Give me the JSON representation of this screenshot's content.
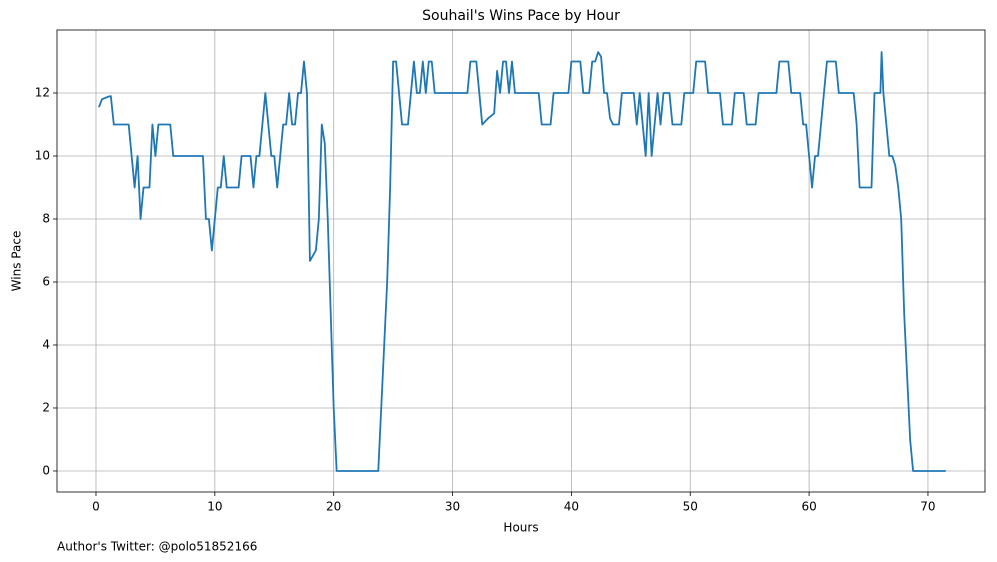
{
  "chart_data": {
    "type": "line",
    "title": "Souhail's Wins Pace by Hour",
    "x_label": "Hours",
    "y_label": "Wins Pace",
    "footnote": "Author's Twitter: @polo51852166",
    "color": "#1f77b4",
    "grid": true,
    "xlim": [
      -3.28,
      74.8
    ],
    "ylim": [
      -0.667,
      14.0
    ],
    "xticks": [
      0,
      10,
      20,
      30,
      40,
      50,
      60,
      70
    ],
    "yticks": [
      0,
      2,
      4,
      6,
      8,
      10,
      12
    ],
    "x": [
      0.25,
      0.5,
      1,
      1.25,
      1.5,
      2,
      2.5,
      2.75,
      3,
      3.25,
      3.5,
      3.75,
      4,
      4.25,
      4.5,
      4.75,
      5,
      5.25,
      5.5,
      6,
      6.25,
      6.5,
      7,
      8,
      9,
      9.25,
      9.5,
      9.75,
      10,
      10.25,
      10.5,
      10.75,
      11,
      11.5,
      12,
      12.25,
      12.5,
      13,
      13.25,
      13.5,
      13.75,
      14,
      14.25,
      14.5,
      14.75,
      15,
      15.25,
      15.5,
      15.75,
      16,
      16.25,
      16.5,
      16.75,
      17,
      17.25,
      17.5,
      17.75,
      18,
      18.5,
      18.75,
      19,
      19.25,
      19.5,
      19.75,
      20,
      20.25,
      21,
      22,
      23,
      23.75,
      24,
      24.25,
      24.5,
      24.75,
      25,
      25.25,
      25.5,
      25.75,
      26,
      26.25,
      26.5,
      26.75,
      27,
      27.25,
      27.5,
      27.75,
      28,
      28.25,
      28.5,
      29,
      30,
      31,
      31.25,
      31.5,
      32,
      32.25,
      32.5,
      33,
      33.5,
      33.75,
      34,
      34.25,
      34.5,
      34.75,
      35,
      35.25,
      36,
      37,
      37.25,
      37.5,
      38,
      38.25,
      38.5,
      39,
      39.5,
      39.75,
      40,
      40.5,
      40.75,
      41,
      41.5,
      41.75,
      42,
      42.25,
      42.5,
      42.75,
      43,
      43.25,
      43.5,
      44,
      44.25,
      45,
      45.25,
      45.5,
      45.75,
      46,
      46.25,
      46.5,
      46.75,
      47,
      47.25,
      47.5,
      47.75,
      48,
      48.25,
      48.5,
      49,
      49.25,
      49.5,
      50,
      50.25,
      50.5,
      51,
      51.25,
      51.5,
      52,
      52.5,
      52.75,
      53,
      53.5,
      53.75,
      54,
      54.5,
      54.75,
      55,
      55.5,
      55.75,
      56,
      57,
      57.25,
      57.5,
      58,
      58.25,
      58.5,
      59,
      59.25,
      59.5,
      59.75,
      60,
      60.25,
      60.5,
      60.75,
      61,
      61.25,
      61.5,
      62,
      62.25,
      62.5,
      63,
      63.5,
      63.75,
      64,
      64.25,
      64.5,
      65,
      65.25,
      65.5,
      65.75,
      66,
      66.1,
      66.25,
      66.5,
      66.75,
      67,
      67.25,
      67.5,
      67.75,
      68,
      68.25,
      68.5,
      68.75,
      69,
      70,
      71,
      71.5
    ],
    "values": [
      11.55,
      11.8,
      11.88,
      11.9,
      11,
      11,
      11,
      11,
      10,
      9,
      10,
      8,
      9,
      9,
      9,
      11,
      10,
      11,
      11,
      11,
      11,
      10,
      10,
      10,
      10,
      8,
      8,
      7,
      8,
      9,
      9,
      10,
      9,
      9,
      9,
      10,
      10,
      10,
      9,
      10,
      10,
      11,
      12,
      11,
      10,
      10,
      9,
      10,
      11,
      11,
      12,
      11,
      11,
      12,
      12,
      13,
      12,
      6.67,
      7,
      8,
      11,
      10.4,
      8,
      5,
      2,
      0,
      0,
      0,
      0,
      0,
      2,
      4,
      6,
      9,
      13,
      13,
      12,
      11,
      11,
      11,
      12,
      13,
      12,
      12,
      13,
      12,
      13,
      13,
      12,
      12,
      12,
      12,
      12,
      13,
      13,
      12,
      11,
      11.2,
      11.35,
      12.7,
      12,
      13,
      13,
      12,
      13,
      12,
      12,
      12,
      12,
      11,
      11,
      11,
      12,
      12,
      12,
      12,
      13,
      13,
      13,
      12,
      12,
      13,
      13,
      13.3,
      13.15,
      12,
      12,
      11.2,
      11,
      11,
      12,
      12,
      12,
      11,
      12,
      11,
      10,
      12,
      10,
      11,
      12,
      11,
      12,
      12,
      12,
      11,
      11,
      11,
      12,
      12,
      12,
      13,
      13,
      13,
      12,
      12,
      12,
      11,
      11,
      11,
      12,
      12,
      12,
      11,
      11,
      11,
      12,
      12,
      12,
      12,
      13,
      13,
      13,
      12,
      12,
      12,
      11,
      11,
      10,
      9,
      10,
      10,
      11,
      12,
      13,
      13,
      13,
      12,
      12,
      12,
      12,
      11,
      9,
      9,
      9,
      9,
      12,
      12,
      12,
      13.3,
      12,
      11,
      10,
      10,
      9.7,
      9,
      8,
      5,
      3,
      1,
      0,
      0,
      0,
      0,
      0
    ]
  }
}
